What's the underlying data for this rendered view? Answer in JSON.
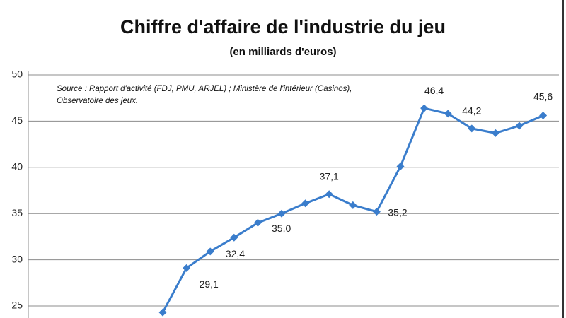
{
  "chart_data": {
    "type": "line",
    "title": "Chiffre d'affaire de l'industrie du jeu",
    "subtitle": "(en milliards d'euros)",
    "annotations": [
      "Source : Rapport d'activité (FDJ, PMU, ARJEL) ; Ministère de l'intérieur (Casinos),",
      "Observatoire des jeux."
    ],
    "categories": [
      null,
      null,
      null,
      null,
      null,
      null,
      null,
      null,
      null,
      null,
      null,
      null,
      null,
      null,
      null,
      null,
      null
    ],
    "series": [
      {
        "name": null,
        "color": "#3a7dcc",
        "values": [
          24.3,
          29.1,
          30.9,
          32.4,
          34.0,
          35.0,
          36.1,
          37.1,
          35.9,
          35.2,
          40.1,
          46.4,
          45.8,
          44.2,
          43.7,
          44.5,
          45.6
        ],
        "value_labels": [
          null,
          "29,1",
          null,
          "32,4",
          null,
          "35,0",
          null,
          "37,1",
          null,
          "35,2",
          null,
          "46,4",
          null,
          "44,2",
          null,
          null,
          "45,6"
        ]
      }
    ],
    "ylim": [
      23.7,
      50
    ],
    "yticks": [
      25,
      30,
      35,
      40,
      45,
      50
    ],
    "grid": true
  }
}
